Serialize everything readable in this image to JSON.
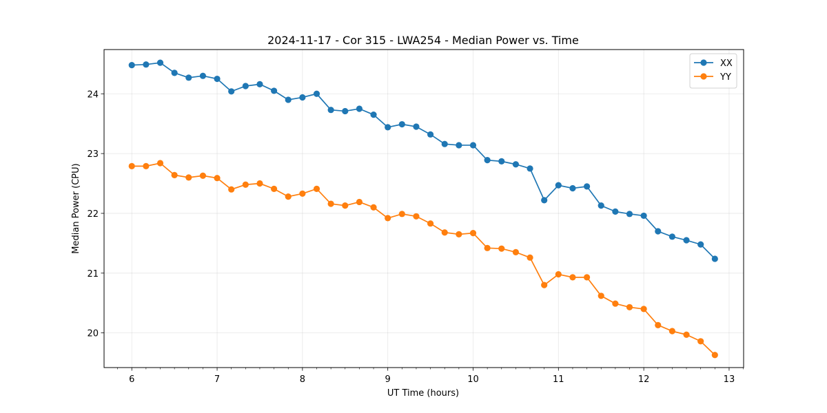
{
  "chart_data": {
    "type": "line",
    "title": "2024-11-17 - Cor 315 - LWA254 - Median Power vs. Time",
    "xlabel": "UT Time (hours)",
    "ylabel": "Median Power (CPU)",
    "xlim": [
      5.675,
      13.17
    ],
    "ylim": [
      19.42,
      24.74
    ],
    "xticks": [
      6,
      7,
      8,
      9,
      10,
      11,
      12,
      13
    ],
    "yticks": [
      20,
      21,
      22,
      23,
      24
    ],
    "grid": true,
    "legend_position": "top-right",
    "x": [
      6.0,
      6.1667,
      6.3333,
      6.5,
      6.6667,
      6.8333,
      7.0,
      7.1667,
      7.3333,
      7.5,
      7.6667,
      7.8333,
      8.0,
      8.1667,
      8.3333,
      8.5,
      8.6667,
      8.8333,
      9.0,
      9.1667,
      9.3333,
      9.5,
      9.6667,
      9.8333,
      10.0,
      10.1667,
      10.3333,
      10.5,
      10.6667,
      10.8333,
      11.0,
      11.1667,
      11.3333,
      11.5,
      11.6667,
      11.8333,
      12.0,
      12.1667,
      12.3333,
      12.5,
      12.6667,
      12.8333
    ],
    "series": [
      {
        "name": "XX",
        "color": "#1f77b4",
        "values": [
          24.48,
          24.49,
          24.52,
          24.35,
          24.27,
          24.3,
          24.25,
          24.04,
          24.13,
          24.16,
          24.05,
          23.9,
          23.94,
          24.0,
          23.73,
          23.71,
          23.75,
          23.65,
          23.44,
          23.49,
          23.45,
          23.32,
          23.16,
          23.14,
          23.14,
          22.89,
          22.87,
          22.82,
          22.75,
          22.22,
          22.47,
          22.42,
          22.45,
          22.13,
          22.03,
          21.99,
          21.96,
          21.7,
          21.61,
          21.55,
          21.48,
          21.24
        ]
      },
      {
        "name": "YY",
        "color": "#ff7f0e",
        "values": [
          22.79,
          22.79,
          22.84,
          22.64,
          22.6,
          22.63,
          22.59,
          22.4,
          22.48,
          22.5,
          22.41,
          22.28,
          22.33,
          22.41,
          22.16,
          22.13,
          22.19,
          22.1,
          21.92,
          21.99,
          21.95,
          21.83,
          21.68,
          21.65,
          21.67,
          21.42,
          21.41,
          21.35,
          21.26,
          20.8,
          20.98,
          20.93,
          20.93,
          20.62,
          20.49,
          20.43,
          20.4,
          20.13,
          20.03,
          19.97,
          19.86,
          19.63
        ]
      }
    ]
  }
}
